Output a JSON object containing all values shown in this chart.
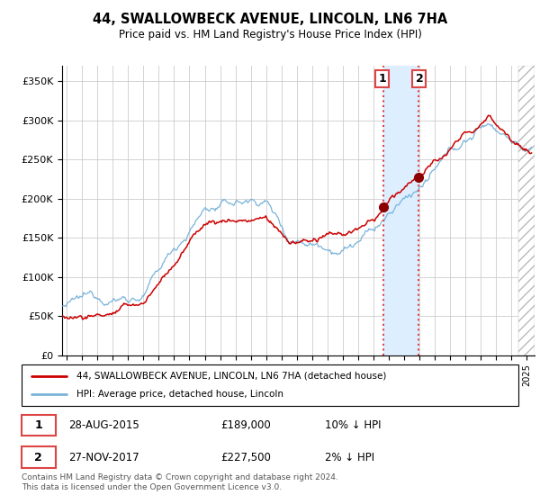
{
  "title": "44, SWALLOWBECK AVENUE, LINCOLN, LN6 7HA",
  "subtitle": "Price paid vs. HM Land Registry's House Price Index (HPI)",
  "xlim_start": 1994.7,
  "xlim_end": 2025.5,
  "ylim": [
    0,
    370000
  ],
  "yticks": [
    0,
    50000,
    100000,
    150000,
    200000,
    250000,
    300000,
    350000
  ],
  "ytick_labels": [
    "£0",
    "£50K",
    "£100K",
    "£150K",
    "£200K",
    "£250K",
    "£300K",
    "£350K"
  ],
  "transaction1": {
    "date_num": 2015.66,
    "price": 189000,
    "label": "1"
  },
  "transaction2": {
    "date_num": 2017.91,
    "price": 227500,
    "label": "2"
  },
  "shade_start": 2015.66,
  "shade_end": 2017.91,
  "hpi_color": "#7ab3d9",
  "price_color": "#cc0000",
  "marker_color": "#8b0000",
  "shade_color": "#ddeeff",
  "dashed_color": "#dd4444",
  "bg_color": "#ffffff",
  "grid_color": "#cccccc",
  "legend_label1": "44, SWALLOWBECK AVENUE, LINCOLN, LN6 7HA (detached house)",
  "legend_label2": "HPI: Average price, detached house, Lincoln",
  "table_row1": [
    "1",
    "28-AUG-2015",
    "£189,000",
    "10% ↓ HPI"
  ],
  "table_row2": [
    "2",
    "27-NOV-2017",
    "£227,500",
    "2% ↓ HPI"
  ],
  "footer": "Contains HM Land Registry data © Crown copyright and database right 2024.\nThis data is licensed under the Open Government Licence v3.0.",
  "hatch_region_start": 2024.42,
  "hatch_region_end": 2025.5
}
